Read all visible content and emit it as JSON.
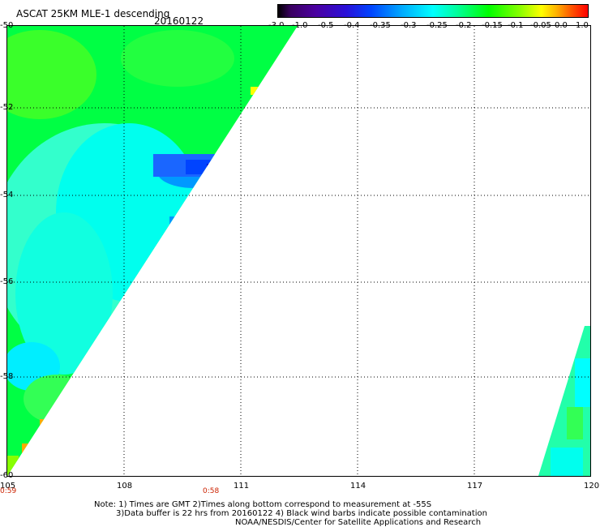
{
  "header": {
    "title": "ASCAT 25KM MLE-1 descending",
    "date": "20160122"
  },
  "colorbar": {
    "labels": [
      "-3.0",
      "-1.0",
      "-0.5",
      "-0.4",
      "-0.35",
      "-0.3",
      "-0.25",
      "-0.2",
      "-0.15",
      "-0.1",
      "-0.05",
      "0.0",
      "1.0"
    ]
  },
  "map": {
    "lat_labels": [
      "-50",
      "-52",
      "-54",
      "-56",
      "-58",
      "-60"
    ],
    "lon_labels": [
      "105",
      "108",
      "111",
      "114",
      "117",
      "120"
    ],
    "lat_range": [
      -60,
      -50
    ],
    "lon_range": [
      105,
      120
    ],
    "times": [
      "0:59",
      "0:58"
    ],
    "grid": "dotted",
    "colors": {
      "swath_green": "#00ff44",
      "swath_cyan": "#00ffff",
      "swath_blue": "#0044ff",
      "swath_yellow": "#ffff00",
      "swath_orange": "#ffaa00",
      "time_label": "#cc2200"
    }
  },
  "notes": {
    "line1": "Note: 1) Times are GMT 2)Times along bottom correspond to measurement at -55S",
    "line2": "3)Data buffer is 22 hrs from 20160122 4) Black wind barbs indicate possible contamination",
    "line3": "NOAA/NESDIS/Center for Satellite Applications and Research"
  }
}
